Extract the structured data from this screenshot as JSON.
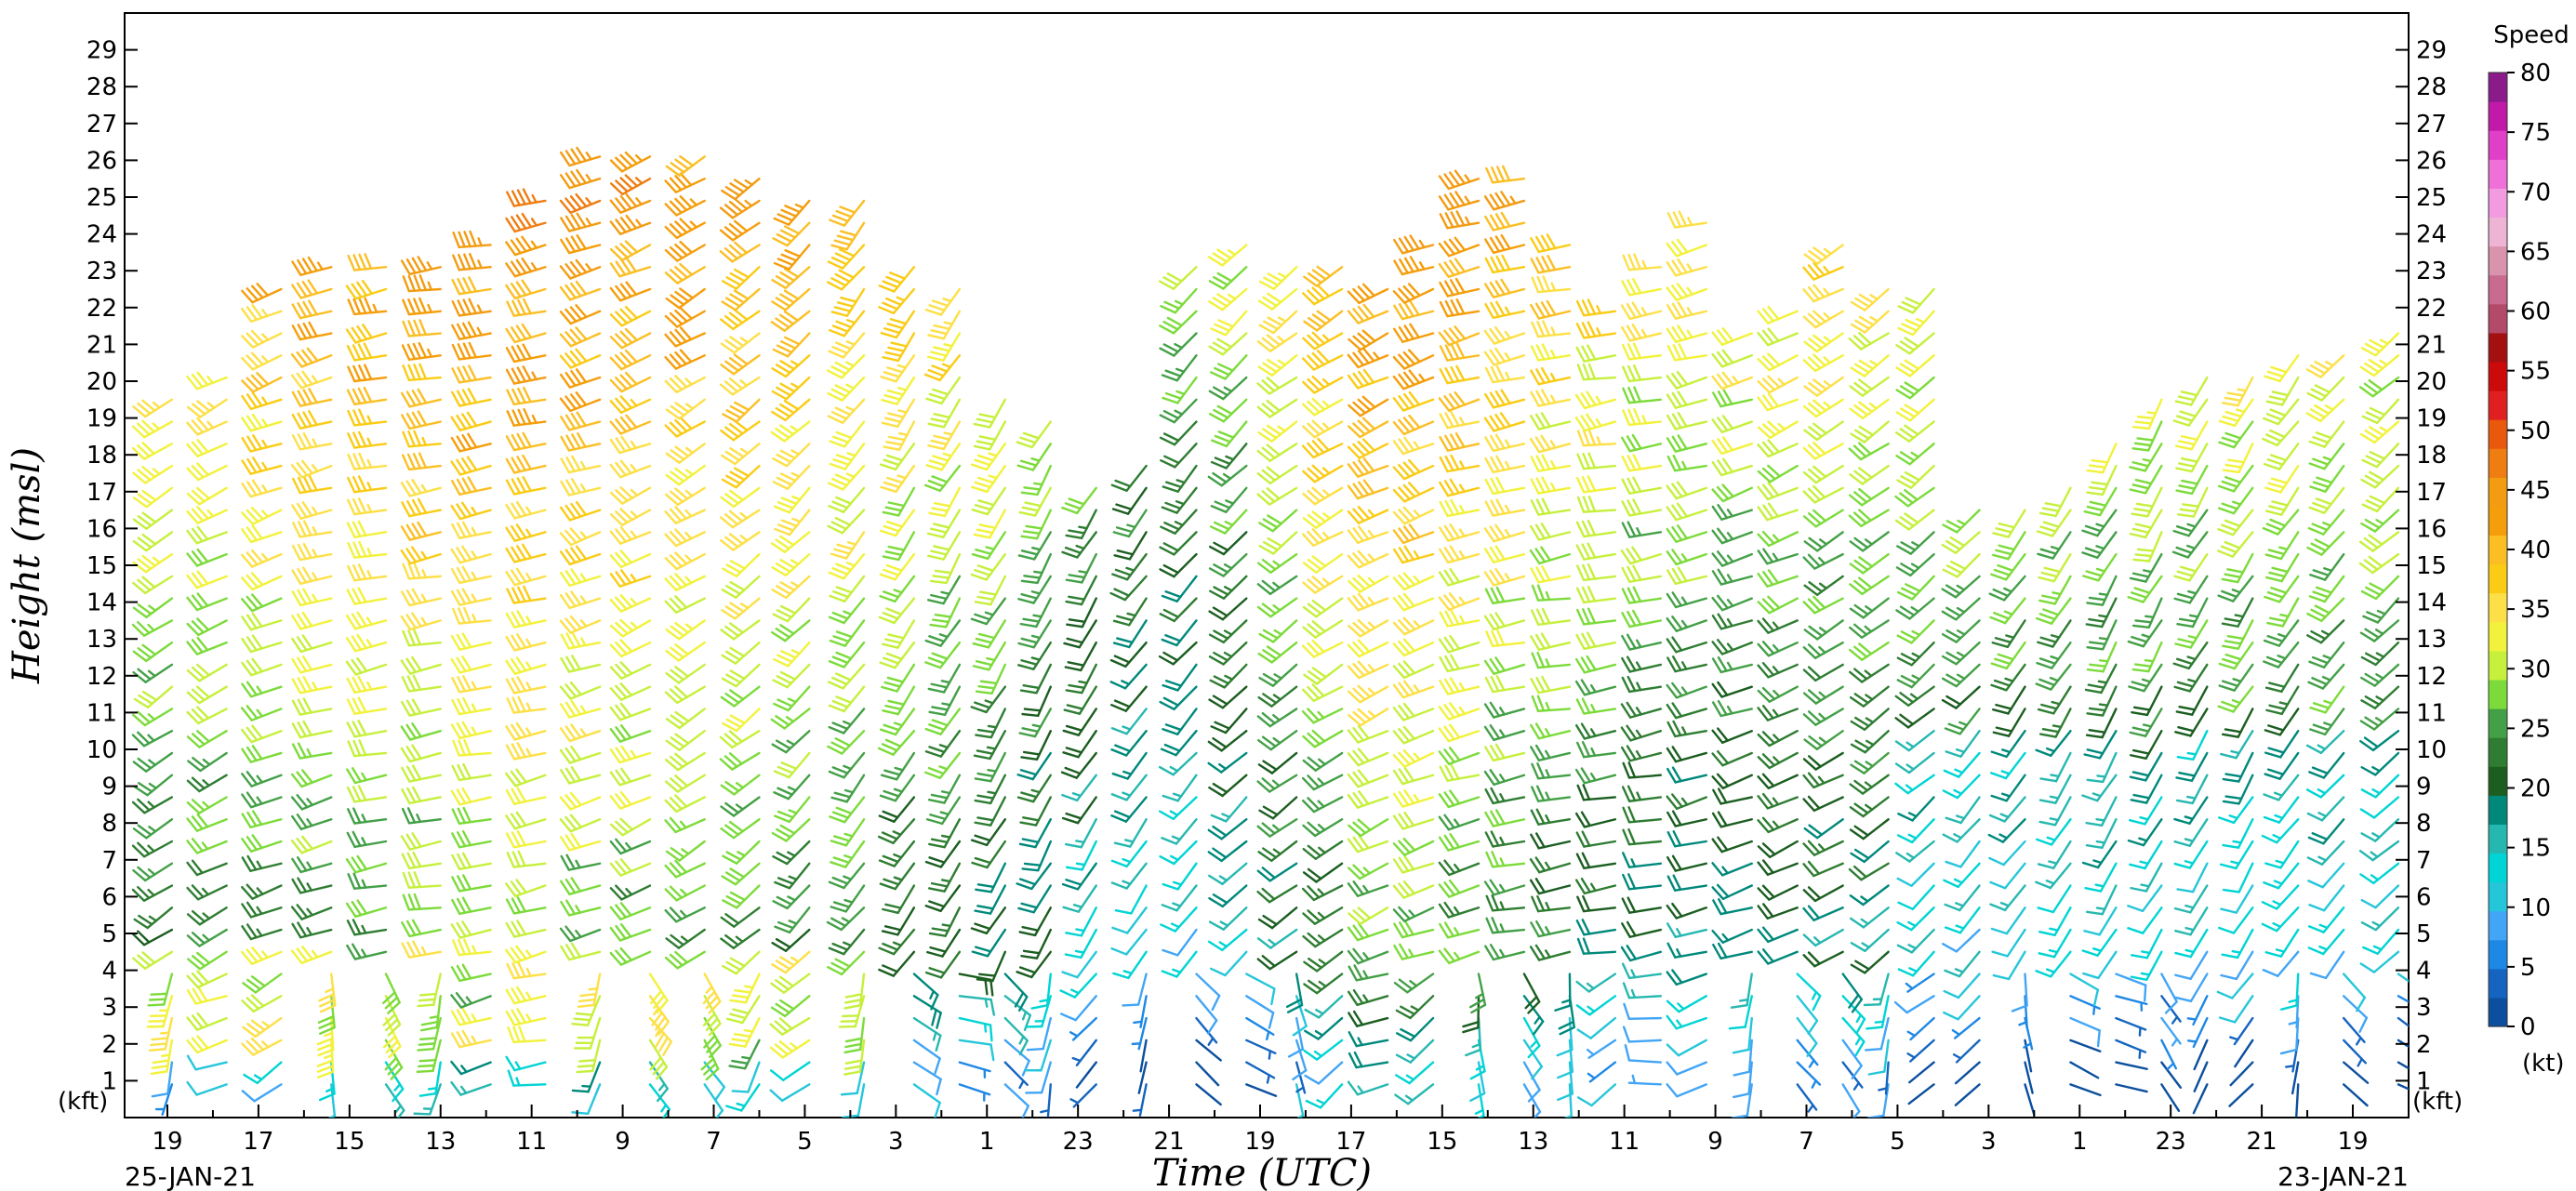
{
  "chart_data": {
    "type": "wind-barb-time-height",
    "ylabel": "Height (msl)",
    "xlabel": "Time (UTC)",
    "y_unit_label": "(kft)",
    "ylim": [
      0,
      30
    ],
    "y_ticks": [
      1,
      2,
      3,
      4,
      5,
      6,
      7,
      8,
      9,
      10,
      11,
      12,
      13,
      14,
      15,
      16,
      17,
      18,
      19,
      20,
      21,
      22,
      23,
      24,
      25,
      26,
      27,
      28,
      29
    ],
    "x_direction": "reversed",
    "x_range_hours": [
      0,
      48
    ],
    "x_tick_labels": [
      {
        "label": "19",
        "hour": 0
      },
      {
        "label": "17",
        "hour": 2
      },
      {
        "label": "15",
        "hour": 4
      },
      {
        "label": "13",
        "hour": 6
      },
      {
        "label": "11",
        "hour": 8
      },
      {
        "label": "9",
        "hour": 10
      },
      {
        "label": "7",
        "hour": 12
      },
      {
        "label": "5",
        "hour": 14
      },
      {
        "label": "3",
        "hour": 16
      },
      {
        "label": "1",
        "hour": 18
      },
      {
        "label": "23",
        "hour": 20
      },
      {
        "label": "21",
        "hour": 22
      },
      {
        "label": "19",
        "hour": 24
      },
      {
        "label": "17",
        "hour": 26
      },
      {
        "label": "15",
        "hour": 28
      },
      {
        "label": "13",
        "hour": 30
      },
      {
        "label": "11",
        "hour": 32
      },
      {
        "label": "9",
        "hour": 34
      },
      {
        "label": "7",
        "hour": 36
      },
      {
        "label": "5",
        "hour": 38
      },
      {
        "label": "3",
        "hour": 40
      },
      {
        "label": "1",
        "hour": 42
      },
      {
        "label": "23",
        "hour": 44
      },
      {
        "label": "21",
        "hour": 46
      },
      {
        "label": "19",
        "hour": 48
      }
    ],
    "start_date_label": "25-JAN-21",
    "end_date_label": "23-JAN-21",
    "legend": {
      "title": "Speed",
      "unit": "(kt)",
      "ticks": [
        0,
        5,
        10,
        15,
        20,
        25,
        30,
        35,
        40,
        45,
        50,
        55,
        60,
        65,
        70,
        75,
        80
      ],
      "colors": [
        "#0b4f9e",
        "#1565c0",
        "#1e88e5",
        "#42a5f5",
        "#26c6da",
        "#00d4d4",
        "#26b8b0",
        "#00897b",
        "#1b5e20",
        "#2e7d32",
        "#43a047",
        "#7cdb3a",
        "#c6f03c",
        "#f2f23c",
        "#fde047",
        "#facc15",
        "#fbbf24",
        "#f59e0b",
        "#f39c12",
        "#ef7d12",
        "#ea580c",
        "#e02020",
        "#cc0a0a",
        "#a31010",
        "#b44a6a",
        "#c86b8e",
        "#d993ad",
        "#eeb4d4",
        "#f39be0",
        "#ee70d8",
        "#e040c8",
        "#c21aa8",
        "#8b1a8b"
      ]
    },
    "profiles": [
      {
        "hour": 0.1,
        "top": 20.0
      },
      {
        "hour": 1.3,
        "top": 20.6
      },
      {
        "hour": 2.5,
        "top": 22.8
      },
      {
        "hour": 3.6,
        "top": 23.5
      },
      {
        "hour": 4.8,
        "top": 23.2
      },
      {
        "hour": 6.0,
        "top": 23.4
      },
      {
        "hour": 7.1,
        "top": 24.0
      },
      {
        "hour": 8.3,
        "top": 25.4
      },
      {
        "hour": 9.5,
        "top": 26.2
      },
      {
        "hour": 10.6,
        "top": 26.6
      },
      {
        "hour": 11.8,
        "top": 26.4
      },
      {
        "hour": 13.0,
        "top": 26.1
      },
      {
        "hour": 14.1,
        "top": 25.5
      },
      {
        "hour": 15.3,
        "top": 25.0
      },
      {
        "hour": 16.4,
        "top": 23.2
      },
      {
        "hour": 17.4,
        "top": 22.6
      },
      {
        "hour": 18.4,
        "top": 19.5
      },
      {
        "hour": 19.4,
        "top": 19.0
      },
      {
        "hour": 20.4,
        "top": 17.5
      },
      {
        "hour": 21.5,
        "top": 17.8
      },
      {
        "hour": 22.6,
        "top": 23.2
      },
      {
        "hour": 23.7,
        "top": 23.8
      },
      {
        "hour": 24.8,
        "top": 23.2
      },
      {
        "hour": 25.8,
        "top": 23.5
      },
      {
        "hour": 26.8,
        "top": 23.0
      },
      {
        "hour": 27.8,
        "top": 23.8
      },
      {
        "hour": 28.8,
        "top": 25.6
      },
      {
        "hour": 29.8,
        "top": 26.0
      },
      {
        "hour": 30.8,
        "top": 24.1
      },
      {
        "hour": 31.8,
        "top": 22.4
      },
      {
        "hour": 32.8,
        "top": 23.2
      },
      {
        "hour": 33.8,
        "top": 24.5
      },
      {
        "hour": 34.8,
        "top": 21.5
      },
      {
        "hour": 35.8,
        "top": 22.0
      },
      {
        "hour": 36.8,
        "top": 24.0
      },
      {
        "hour": 37.8,
        "top": 22.8
      },
      {
        "hour": 38.8,
        "top": 22.8
      },
      {
        "hour": 39.8,
        "top": 16.9
      },
      {
        "hour": 40.8,
        "top": 16.9
      },
      {
        "hour": 41.8,
        "top": 17.4
      },
      {
        "hour": 42.8,
        "top": 18.8
      },
      {
        "hour": 43.8,
        "top": 19.5
      },
      {
        "hour": 44.8,
        "top": 20.2
      },
      {
        "hour": 45.8,
        "top": 20.2
      },
      {
        "hour": 46.8,
        "top": 20.8
      },
      {
        "hour": 47.8,
        "top": 20.8
      },
      {
        "hour": 49.0,
        "top": 21.5
      }
    ]
  }
}
